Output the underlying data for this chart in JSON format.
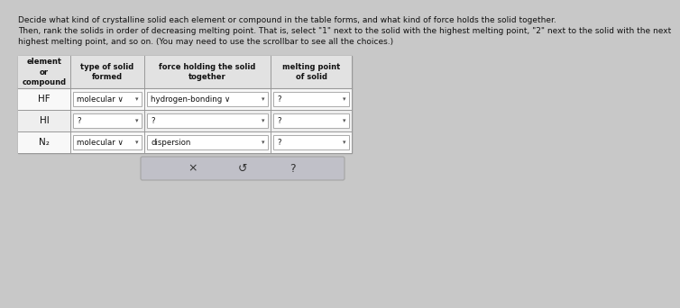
{
  "bg_color": "#c8c8c8",
  "title_line1": "Decide what kind of crystalline solid each element or compound in the table forms, and what kind of force holds the solid together.",
  "title_line2": "Then, rank the solids in order of decreasing melting point. That is, select \"1\" next to the solid with the highest melting point, \"2\" next to the solid with the next",
  "title_line3": "highest melting point, and so on. (You may need to use the scrollbar to see all the choices.)",
  "text_color": "#111111",
  "table_bg": "#f0f0f0",
  "header_bg": "#e2e2e2",
  "row_bg_odd": "#f8f8f8",
  "row_bg_even": "#eeeeee",
  "dropdown_bg": "#ffffff",
  "dropdown_border": "#aaaaaa",
  "grid_color": "#999999",
  "col_headers": [
    "element\nor\ncompound",
    "type of solid\nformed",
    "force holding the solid\ntogether",
    "melting point\nof solid"
  ],
  "elements": [
    "HF",
    "HI",
    "N₂"
  ],
  "row1_type": "molecular ∨",
  "row1_force": "hydrogen-bonding ∨",
  "row1_melt": "?",
  "row2_type": "?",
  "row2_force": "?",
  "row2_melt": "?",
  "row3_type": "molecular ∨",
  "row3_force": "dispersion",
  "row3_melt": "?",
  "btn_text_x": "×",
  "btn_text_undo": "↺",
  "btn_text_q": "?",
  "btn_bg": "#c0c0c8",
  "btn_border": "#aaaaaa"
}
